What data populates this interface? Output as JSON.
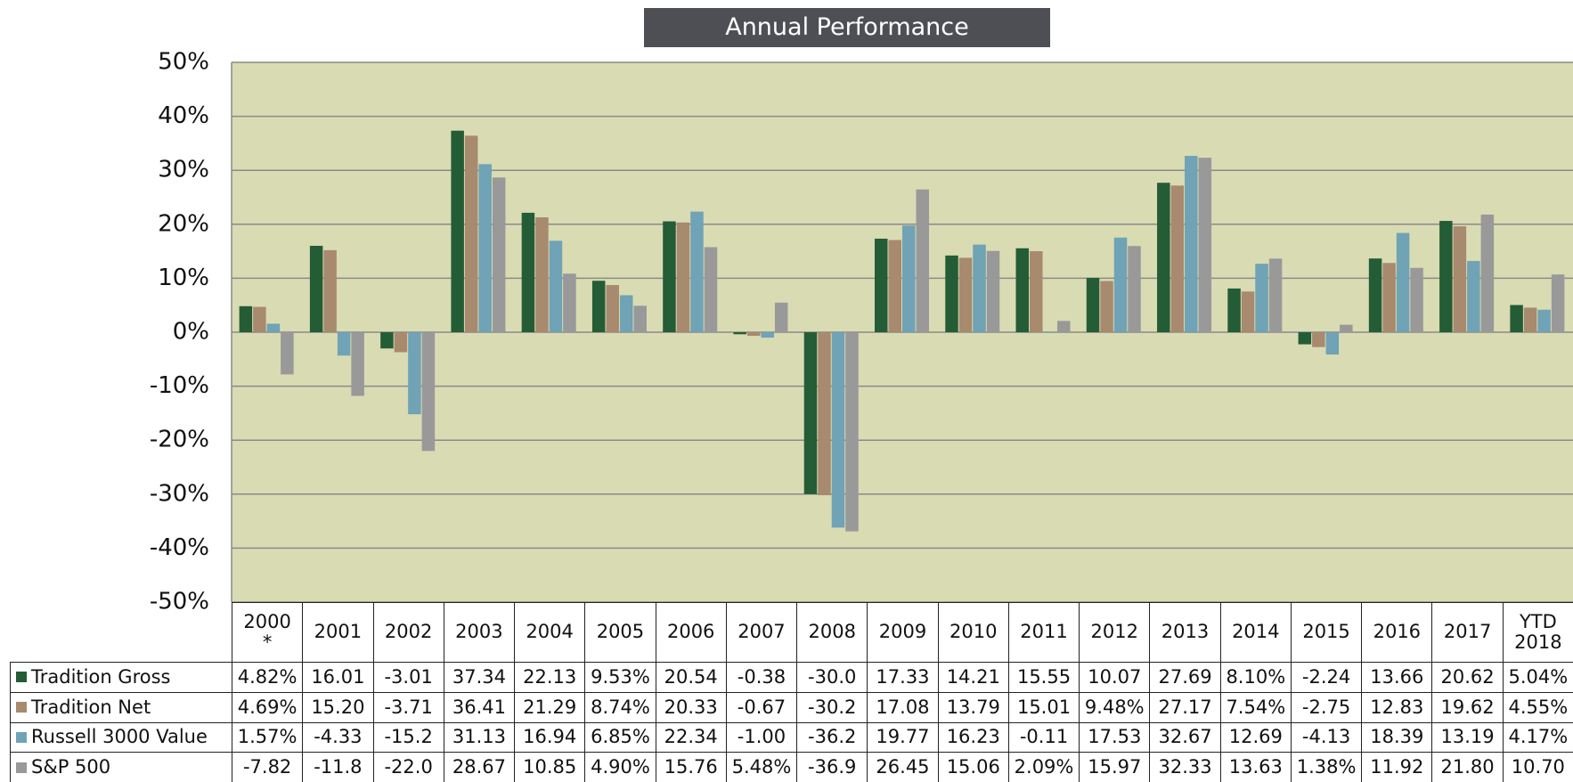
{
  "chart_data": {
    "type": "bar",
    "title": "Annual Performance",
    "categories": [
      "2000\n*",
      "2001",
      "2002",
      "2003",
      "2004",
      "2005",
      "2006",
      "2007",
      "2008",
      "2009",
      "2010",
      "2011",
      "2012",
      "2013",
      "2014",
      "2015",
      "2016",
      "2017",
      "YTD\n2018"
    ],
    "series": [
      {
        "name": "Tradition Gross",
        "color": "#245c36",
        "values": [
          4.82,
          16.01,
          -3.01,
          37.34,
          22.13,
          9.53,
          20.54,
          -0.38,
          -30.0,
          17.33,
          14.21,
          15.55,
          10.07,
          27.69,
          8.1,
          -2.24,
          13.66,
          20.62,
          5.04
        ],
        "value_labels": [
          "4.82%",
          "16.01",
          "-3.01",
          "37.34",
          "22.13",
          "9.53%",
          "20.54",
          "-0.38",
          "-30.0",
          "17.33",
          "14.21",
          "15.55",
          "10.07",
          "27.69",
          "8.10%",
          "-2.24",
          "13.66",
          "20.62",
          "5.04%"
        ]
      },
      {
        "name": "Tradition Net",
        "color": "#a88a6e",
        "values": [
          4.69,
          15.2,
          -3.71,
          36.41,
          21.29,
          8.74,
          20.33,
          -0.67,
          -30.2,
          17.08,
          13.79,
          15.01,
          9.48,
          27.17,
          7.54,
          -2.75,
          12.83,
          19.62,
          4.55
        ],
        "value_labels": [
          "4.69%",
          "15.20",
          "-3.71",
          "36.41",
          "21.29",
          "8.74%",
          "20.33",
          "-0.67",
          "-30.2",
          "17.08",
          "13.79",
          "15.01",
          "9.48%",
          "27.17",
          "7.54%",
          "-2.75",
          "12.83",
          "19.62",
          "4.55%"
        ]
      },
      {
        "name": "Russell 3000 Value",
        "color": "#6fa3b5",
        "values": [
          1.57,
          -4.33,
          -15.2,
          31.13,
          16.94,
          6.85,
          22.34,
          -1.0,
          -36.2,
          19.77,
          16.23,
          -0.11,
          17.53,
          32.67,
          12.69,
          -4.13,
          18.39,
          13.19,
          4.17
        ],
        "value_labels": [
          "1.57%",
          "-4.33",
          "-15.2",
          "31.13",
          "16.94",
          "6.85%",
          "22.34",
          "-1.00",
          "-36.2",
          "19.77",
          "16.23",
          "-0.11",
          "17.53",
          "32.67",
          "12.69",
          "-4.13",
          "18.39",
          "13.19",
          "4.17%"
        ]
      },
      {
        "name": "S&P 500",
        "color": "#999999",
        "values": [
          -7.82,
          -11.8,
          -22.0,
          28.67,
          10.85,
          4.9,
          15.76,
          5.48,
          -36.9,
          26.45,
          15.06,
          2.09,
          15.97,
          32.33,
          13.63,
          1.38,
          11.92,
          21.8,
          10.7
        ],
        "value_labels": [
          "-7.82",
          "-11.8",
          "-22.0",
          "28.67",
          "10.85",
          "4.90%",
          "15.76",
          "5.48%",
          "-36.9",
          "26.45",
          "15.06",
          "2.09%",
          "15.97",
          "32.33",
          "13.63",
          "1.38%",
          "11.92",
          "21.80",
          "10.70"
        ]
      }
    ],
    "ylim": [
      -50,
      50
    ],
    "yticks": [
      {
        "value": -50,
        "label": "-50%"
      },
      {
        "value": -40,
        "label": "-40%"
      },
      {
        "value": -30,
        "label": "-30%"
      },
      {
        "value": -20,
        "label": "-20%"
      },
      {
        "value": -10,
        "label": "-10%"
      },
      {
        "value": 0,
        "label": "0%"
      },
      {
        "value": 10,
        "label": "10%"
      },
      {
        "value": 20,
        "label": "20%"
      },
      {
        "value": 30,
        "label": "30%"
      },
      {
        "value": 40,
        "label": "40%"
      },
      {
        "value": 50,
        "label": "50%"
      }
    ],
    "grid": true,
    "plot_background": "#d9dbb3"
  }
}
